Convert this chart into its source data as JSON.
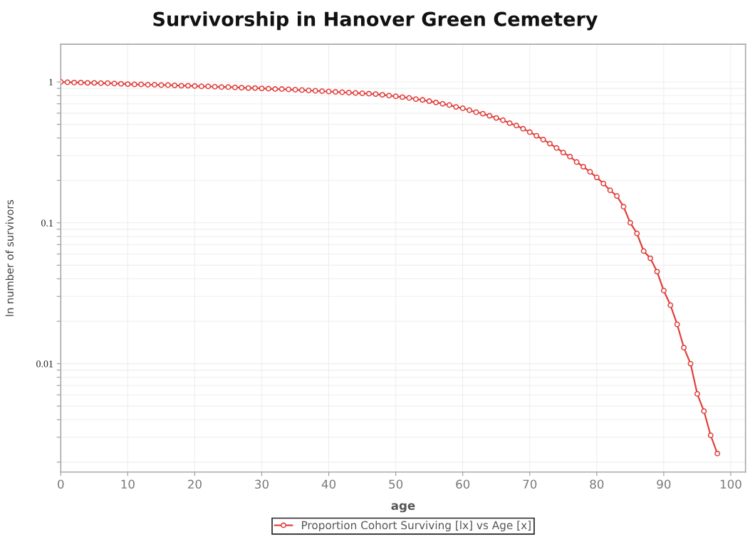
{
  "chart_data": {
    "type": "line",
    "title": "Survivorship in Hanover Green Cemetery",
    "xlabel": "age",
    "ylabel": "ln number of survivors",
    "log": "y",
    "grid": true,
    "legend": "bottom",
    "marker": "circle",
    "line_style": "solid",
    "xlim": [
      0,
      102.2
    ],
    "xticks": [
      0,
      10,
      20,
      30,
      40,
      50,
      60,
      70,
      80,
      90,
      100
    ],
    "ylim": [
      0.0017,
      1.85
    ],
    "yticks": [
      {
        "value": 0.002,
        "label": null
      },
      {
        "value": 0.003,
        "label": null
      },
      {
        "value": 0.004,
        "label": null
      },
      {
        "value": 0.005,
        "label": null
      },
      {
        "value": 0.006,
        "label": null
      },
      {
        "value": 0.007,
        "label": null
      },
      {
        "value": 0.008,
        "label": null
      },
      {
        "value": 0.009,
        "label": null
      },
      0.01,
      {
        "value": 0.02,
        "label": null
      },
      {
        "value": 0.03,
        "label": null
      },
      {
        "value": 0.04,
        "label": null
      },
      {
        "value": 0.05,
        "label": null
      },
      {
        "value": 0.06,
        "label": null
      },
      {
        "value": 0.07,
        "label": null
      },
      {
        "value": 0.08,
        "label": null
      },
      {
        "value": 0.09,
        "label": null
      },
      0.1,
      {
        "value": 0.2,
        "label": null
      },
      {
        "value": 0.3,
        "label": null
      },
      {
        "value": 0.4,
        "label": null
      },
      {
        "value": 0.5,
        "label": null
      },
      {
        "value": 0.6,
        "label": null
      },
      {
        "value": 0.7,
        "label": null
      },
      {
        "value": 0.8,
        "label": null
      },
      {
        "value": 0.9,
        "label": null
      },
      1
    ],
    "x": [
      0,
      1,
      2,
      3,
      4,
      5,
      6,
      7,
      8,
      9,
      10,
      11,
      12,
      13,
      14,
      15,
      16,
      17,
      18,
      19,
      20,
      21,
      22,
      23,
      24,
      25,
      26,
      27,
      28,
      29,
      30,
      31,
      32,
      33,
      34,
      35,
      36,
      37,
      38,
      39,
      40,
      41,
      42,
      43,
      44,
      45,
      46,
      47,
      48,
      49,
      50,
      51,
      52,
      53,
      54,
      55,
      56,
      57,
      58,
      59,
      60,
      61,
      62,
      63,
      64,
      65,
      66,
      67,
      68,
      69,
      70,
      71,
      72,
      73,
      74,
      75,
      76,
      77,
      78,
      79,
      80,
      81,
      82,
      83,
      84,
      85,
      86,
      87,
      88,
      89,
      90,
      91,
      92,
      93,
      94,
      95,
      96,
      97,
      98
    ],
    "series": [
      {
        "name": "Proportion Cohort Surviving [lx] vs Age [x]",
        "color": "#e0403c",
        "values": [
          1.0,
          0.995,
          0.99,
          0.99,
          0.985,
          0.985,
          0.98,
          0.98,
          0.975,
          0.97,
          0.965,
          0.96,
          0.96,
          0.955,
          0.955,
          0.95,
          0.95,
          0.945,
          0.94,
          0.94,
          0.935,
          0.93,
          0.93,
          0.925,
          0.92,
          0.92,
          0.915,
          0.91,
          0.905,
          0.905,
          0.9,
          0.895,
          0.89,
          0.89,
          0.885,
          0.88,
          0.875,
          0.87,
          0.865,
          0.86,
          0.855,
          0.85,
          0.845,
          0.84,
          0.835,
          0.83,
          0.825,
          0.82,
          0.81,
          0.8,
          0.79,
          0.78,
          0.77,
          0.755,
          0.745,
          0.73,
          0.715,
          0.7,
          0.685,
          0.665,
          0.65,
          0.63,
          0.61,
          0.595,
          0.575,
          0.555,
          0.535,
          0.51,
          0.49,
          0.465,
          0.44,
          0.415,
          0.39,
          0.365,
          0.34,
          0.315,
          0.295,
          0.27,
          0.25,
          0.23,
          0.21,
          0.19,
          0.17,
          0.155,
          0.13,
          0.1,
          0.084,
          0.063,
          0.056,
          0.045,
          0.033,
          0.026,
          0.019,
          0.013,
          0.01,
          0.0061,
          0.0046,
          0.0031,
          0.0023
        ]
      }
    ]
  }
}
